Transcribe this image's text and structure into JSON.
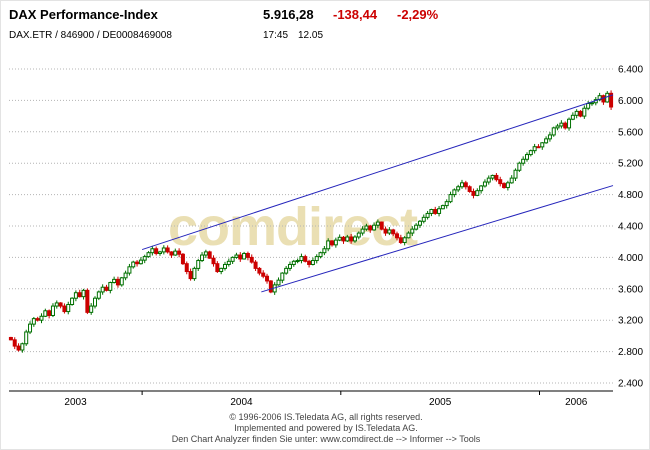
{
  "header": {
    "title": "DAX Performance-Index",
    "last_price": "5.916,28",
    "change_abs": "-138,44",
    "change_pct": "-2,29%",
    "symbol_line": "DAX.ETR / 846900 / DE0008469008",
    "quote_time": "17:45",
    "quote_date": "12.05"
  },
  "watermark": "comdirect",
  "footer": {
    "line1": "© 1996-2006 IS.Teledata AG, all rights reserved.",
    "line2": "Implemented and powered by IS.Teledata AG.",
    "line3": "Den Chart Analyzer finden Sie unter: www.comdirect.de --> Informer --> Tools"
  },
  "colors": {
    "up": "#007000",
    "down": "#cc0000",
    "trend": "#2525bb",
    "grid": "#b4b4b4",
    "axis": "#000000",
    "text": "#000000"
  },
  "chart_data": {
    "type": "candlestick",
    "title": "DAX Performance-Index, weekly candles, May 2003 - 12 May 2006",
    "t_start": 2003.33,
    "t_end": 2006.37,
    "ylim": [
      2300,
      6500
    ],
    "grid": true,
    "y_ticks": [
      {
        "value": 2400,
        "label": "2.400"
      },
      {
        "value": 2800,
        "label": "2.800"
      },
      {
        "value": 3200,
        "label": "3.200"
      },
      {
        "value": 3600,
        "label": "3.600"
      },
      {
        "value": 4000,
        "label": "4.000"
      },
      {
        "value": 4400,
        "label": "4.400"
      },
      {
        "value": 4800,
        "label": "4.800"
      },
      {
        "value": 5200,
        "label": "5.200"
      },
      {
        "value": 5600,
        "label": "5.600"
      },
      {
        "value": 6000,
        "label": "6.000"
      },
      {
        "value": 6400,
        "label": "6.400"
      }
    ],
    "x_labels": [
      "2003",
      "2004",
      "2005",
      "2006"
    ],
    "year_boundaries": [
      2004,
      2005,
      2006
    ],
    "last_close": 5916.28,
    "weekly_closes": [
      2950,
      2870,
      2820,
      2900,
      3050,
      3150,
      3220,
      3200,
      3250,
      3320,
      3260,
      3380,
      3420,
      3380,
      3310,
      3400,
      3480,
      3550,
      3500,
      3580,
      3300,
      3380,
      3480,
      3560,
      3620,
      3580,
      3680,
      3720,
      3650,
      3740,
      3800,
      3880,
      3940,
      3920,
      3965,
      4010,
      4060,
      4110,
      4050,
      4070,
      4120,
      4070,
      4030,
      4080,
      4040,
      3920,
      3820,
      3730,
      3860,
      3960,
      4030,
      4070,
      3990,
      3920,
      3820,
      3860,
      3910,
      3950,
      4000,
      4030,
      3980,
      4050,
      4000,
      3940,
      3860,
      3800,
      3760,
      3700,
      3560,
      3650,
      3710,
      3800,
      3860,
      3910,
      3950,
      3960,
      4010,
      3950,
      3910,
      3960,
      4010,
      4060,
      4110,
      4210,
      4160,
      4220,
      4256,
      4210,
      4260,
      4210,
      4260,
      4310,
      4360,
      4400,
      4350,
      4410,
      4450,
      4360,
      4310,
      4350,
      4300,
      4250,
      4190,
      4250,
      4310,
      4360,
      4410,
      4460,
      4510,
      4560,
      4610,
      4560,
      4620,
      4660,
      4710,
      4800,
      4860,
      4900,
      4950,
      4900,
      4840,
      4790,
      4850,
      4910,
      4960,
      5010,
      5044,
      4990,
      4940,
      4890,
      4950,
      5010,
      5110,
      5200,
      5250,
      5310,
      5360,
      5410,
      5408,
      5460,
      5510,
      5560,
      5650,
      5674,
      5710,
      5650,
      5760,
      5810,
      5860,
      5800,
      5900,
      5960,
      5970,
      6010,
      6060,
      5980,
      6090,
      5916
    ],
    "trendlines": [
      {
        "t1": 2004.0,
        "v1": 4100,
        "t2": 2006.37,
        "v2": 6070
      },
      {
        "t1": 2004.6,
        "v1": 3560,
        "t2": 2006.37,
        "v2": 4915
      }
    ]
  }
}
